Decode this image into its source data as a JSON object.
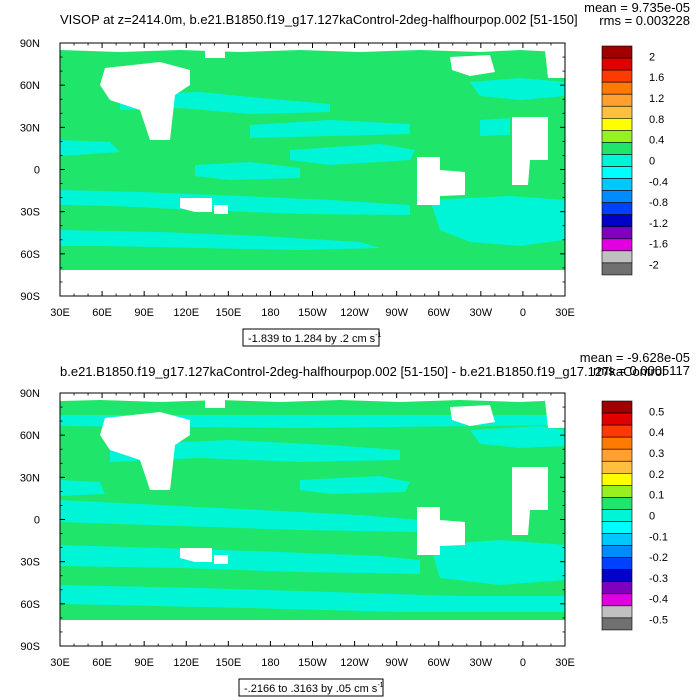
{
  "colors": {
    "ocean_main": "#1fe66a",
    "ocean_alt": "#00f5d6",
    "land": "#ffffff",
    "axis": "#000000"
  },
  "chart_data": [
    {
      "type": "heatmap",
      "title": "VISOP at z=2414.0m, b.e21.B1850.f19_g17.127kaControl-2deg-halfhourpop.002 [51-150]",
      "stats": {
        "mean": "mean = 9.735e-05",
        "rms": "rms = 0.003228"
      },
      "x_tick_labels": [
        "30E",
        "60E",
        "90E",
        "120E",
        "150E",
        "180",
        "150W",
        "120W",
        "90W",
        "60W",
        "30W",
        "0",
        "30E"
      ],
      "y_tick_labels": [
        "90N",
        "60N",
        "30N",
        "0",
        "30S",
        "60S",
        "90S"
      ],
      "x_range": [
        30,
        390
      ],
      "y_range": [
        -90,
        90
      ],
      "colorbar": {
        "labels": [
          "2",
          "1.6",
          "1.2",
          "0.8",
          "0.4",
          "0",
          "-0.4",
          "-0.8",
          "-1.2",
          "-1.6",
          "-2"
        ],
        "colors": [
          "#a00000",
          "#e00000",
          "#ff3a00",
          "#ff7a00",
          "#ffa030",
          "#ffc040",
          "#ffff00",
          "#98f020",
          "#1fe66a",
          "#00f5d6",
          "#00ffff",
          "#00c8ff",
          "#008cff",
          "#0040ff",
          "#0000c8",
          "#8000c0",
          "#e000e0",
          "#c0c0c0",
          "#707070"
        ]
      },
      "range_label": "-1.839 to 1.284 by .2 cm s",
      "range_unit_exp": "-1"
    },
    {
      "type": "heatmap",
      "title": "b.e21.B1850.f19_g17.127kaControl-2deg-halfhourpop.002 [51-150] - b.e21.B1850.f19_g17.127kaControl",
      "stats": {
        "mean": "mean = -9.628e-05",
        "rms": "rms = 0.0005117"
      },
      "x_tick_labels": [
        "30E",
        "60E",
        "90E",
        "120E",
        "150E",
        "180",
        "150W",
        "120W",
        "90W",
        "60W",
        "30W",
        "0",
        "30E"
      ],
      "y_tick_labels": [
        "90N",
        "60N",
        "30N",
        "0",
        "30S",
        "60S",
        "90S"
      ],
      "x_range": [
        30,
        390
      ],
      "y_range": [
        -90,
        90
      ],
      "colorbar": {
        "labels": [
          "0.5",
          "0.4",
          "0.3",
          "0.2",
          "0.1",
          "0",
          "-0.1",
          "-0.2",
          "-0.3",
          "-0.4",
          "-0.5"
        ],
        "colors": [
          "#a00000",
          "#e00000",
          "#ff3a00",
          "#ff7a00",
          "#ffa030",
          "#ffc040",
          "#ffff00",
          "#98f020",
          "#1fe66a",
          "#00f5d6",
          "#00ffff",
          "#00c8ff",
          "#008cff",
          "#0040ff",
          "#0000c8",
          "#8000c0",
          "#e000e0",
          "#c0c0c0",
          "#707070"
        ]
      },
      "range_label": "-.2166 to .3163 by .05 cm s",
      "range_unit_exp": "-1"
    }
  ]
}
